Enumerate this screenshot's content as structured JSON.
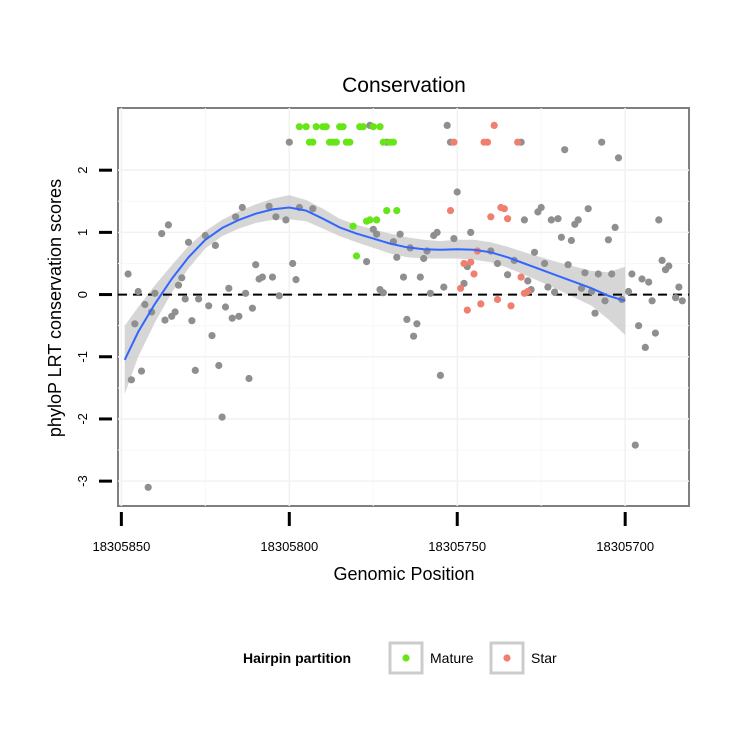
{
  "chart_data": {
    "type": "scatter",
    "title": "Conservation",
    "xlabel": "Genomic Position",
    "ylabel": "phyloP LRT conservation scores",
    "xlim": [
      18305851,
      18305681
    ],
    "ylim": [
      -3.4,
      3.0
    ],
    "x_reversed": true,
    "x_ticks": [
      18305850,
      18305800,
      18305750,
      18305700
    ],
    "x_tick_labels": [
      "18305850",
      "18305800",
      "18305750",
      "18305700"
    ],
    "y_ticks": [
      -3,
      -2,
      -1,
      0,
      1,
      2
    ],
    "y_tick_labels": [
      "-3",
      "-2",
      "-1",
      "0",
      "1",
      "2"
    ],
    "reference_line": {
      "y": 0,
      "style": "dashed"
    },
    "legend": {
      "title": "Hairpin partition",
      "position": "bottom",
      "entries": [
        {
          "name": "Mature",
          "color": "#66e616"
        },
        {
          "name": "Star",
          "color": "#f07f70"
        }
      ]
    },
    "colors": {
      "other": "#8f8f8f",
      "mature": "#66e616",
      "star": "#f07f70",
      "smooth_line": "#3366ff",
      "ribbon": "#c8c8c8"
    },
    "series": [
      {
        "name": "Other",
        "points": [
          [
            18305848,
            0.33
          ],
          [
            18305847,
            -1.37
          ],
          [
            18305846,
            -0.47
          ],
          [
            18305845,
            0.05
          ],
          [
            18305844,
            -1.23
          ],
          [
            18305843,
            -0.16
          ],
          [
            18305842,
            -3.1
          ],
          [
            18305841,
            -0.28
          ],
          [
            18305840,
            0.02
          ],
          [
            18305838,
            0.98
          ],
          [
            18305837,
            -0.41
          ],
          [
            18305836,
            1.12
          ],
          [
            18305835,
            -0.35
          ],
          [
            18305834,
            -0.28
          ],
          [
            18305833,
            0.15
          ],
          [
            18305832,
            0.27
          ],
          [
            18305831,
            -0.07
          ],
          [
            18305830,
            0.84
          ],
          [
            18305829,
            -0.42
          ],
          [
            18305828,
            -1.22
          ],
          [
            18305827,
            -0.07
          ],
          [
            18305825,
            0.95
          ],
          [
            18305824,
            -0.18
          ],
          [
            18305823,
            -0.66
          ],
          [
            18305822,
            0.79
          ],
          [
            18305821,
            -1.14
          ],
          [
            18305820,
            -1.97
          ],
          [
            18305819,
            -0.2
          ],
          [
            18305818,
            0.1
          ],
          [
            18305817,
            -0.38
          ],
          [
            18305816,
            1.25
          ],
          [
            18305815,
            -0.35
          ],
          [
            18305814,
            1.4
          ],
          [
            18305813,
            0.02
          ],
          [
            18305812,
            -1.35
          ],
          [
            18305811,
            -0.22
          ],
          [
            18305810,
            0.48
          ],
          [
            18305809,
            0.25
          ],
          [
            18305808,
            0.28
          ],
          [
            18305806,
            1.42
          ],
          [
            18305805,
            0.28
          ],
          [
            18305804,
            1.25
          ],
          [
            18305803,
            -0.02
          ],
          [
            18305801,
            1.2
          ],
          [
            18305800,
            2.45
          ],
          [
            18305799,
            0.5
          ],
          [
            18305798,
            0.24
          ],
          [
            18305797,
            1.4
          ],
          [
            18305793,
            1.38
          ],
          [
            18305777,
            0.53
          ],
          [
            18305776,
            2.72
          ],
          [
            18305775,
            1.05
          ],
          [
            18305774,
            0.97
          ],
          [
            18305773,
            0.08
          ],
          [
            18305772,
            0.03
          ],
          [
            18305771,
            2.45
          ],
          [
            18305769,
            0.85
          ],
          [
            18305768,
            0.6
          ],
          [
            18305767,
            0.97
          ],
          [
            18305766,
            0.28
          ],
          [
            18305765,
            -0.4
          ],
          [
            18305764,
            0.75
          ],
          [
            18305763,
            -0.67
          ],
          [
            18305762,
            -0.47
          ],
          [
            18305761,
            0.28
          ],
          [
            18305760,
            0.58
          ],
          [
            18305759,
            0.7
          ],
          [
            18305758,
            0.02
          ],
          [
            18305757,
            0.95
          ],
          [
            18305756,
            1.0
          ],
          [
            18305755,
            -1.3
          ],
          [
            18305754,
            0.12
          ],
          [
            18305753,
            2.72
          ],
          [
            18305752,
            2.45
          ],
          [
            18305751,
            0.9
          ],
          [
            18305750,
            1.65
          ],
          [
            18305748,
            0.18
          ],
          [
            18305747,
            0.45
          ],
          [
            18305746,
            1.0
          ],
          [
            18305740,
            0.7
          ],
          [
            18305738,
            0.5
          ],
          [
            18305735,
            0.32
          ],
          [
            18305733,
            0.55
          ],
          [
            18305731,
            2.45
          ],
          [
            18305730,
            1.2
          ],
          [
            18305729,
            0.22
          ],
          [
            18305728,
            0.08
          ],
          [
            18305727,
            0.68
          ],
          [
            18305726,
            1.33
          ],
          [
            18305725,
            1.4
          ],
          [
            18305724,
            0.5
          ],
          [
            18305723,
            0.12
          ],
          [
            18305722,
            1.2
          ],
          [
            18305721,
            0.04
          ],
          [
            18305720,
            1.22
          ],
          [
            18305719,
            0.92
          ],
          [
            18305718,
            2.33
          ],
          [
            18305717,
            0.48
          ],
          [
            18305716,
            0.87
          ],
          [
            18305715,
            1.13
          ],
          [
            18305714,
            1.2
          ],
          [
            18305713,
            0.1
          ],
          [
            18305712,
            0.35
          ],
          [
            18305711,
            1.38
          ],
          [
            18305710,
            0.05
          ],
          [
            18305709,
            -0.3
          ],
          [
            18305708,
            0.33
          ],
          [
            18305707,
            2.45
          ],
          [
            18305706,
            -0.1
          ],
          [
            18305705,
            0.88
          ],
          [
            18305704,
            0.33
          ],
          [
            18305703,
            1.08
          ],
          [
            18305702,
            2.2
          ],
          [
            18305701,
            -0.08
          ],
          [
            18305699,
            0.05
          ],
          [
            18305698,
            0.33
          ],
          [
            18305697,
            -2.42
          ],
          [
            18305696,
            -0.5
          ],
          [
            18305695,
            0.25
          ],
          [
            18305694,
            -0.85
          ],
          [
            18305693,
            0.2
          ],
          [
            18305692,
            -0.1
          ],
          [
            18305691,
            -0.62
          ],
          [
            18305690,
            1.2
          ],
          [
            18305689,
            0.55
          ],
          [
            18305688,
            0.4
          ],
          [
            18305687,
            0.46
          ],
          [
            18305685,
            -0.05
          ],
          [
            18305684,
            0.12
          ],
          [
            18305683,
            -0.1
          ]
        ]
      },
      {
        "name": "Mature",
        "points": [
          [
            18305797,
            2.7
          ],
          [
            18305795,
            2.7
          ],
          [
            18305794,
            2.45
          ],
          [
            18305793,
            2.45
          ],
          [
            18305792,
            2.7
          ],
          [
            18305790,
            2.7
          ],
          [
            18305789,
            2.7
          ],
          [
            18305788,
            2.45
          ],
          [
            18305787,
            2.45
          ],
          [
            18305786,
            2.45
          ],
          [
            18305785,
            2.7
          ],
          [
            18305784,
            2.7
          ],
          [
            18305783,
            2.45
          ],
          [
            18305782,
            2.45
          ],
          [
            18305781,
            1.1
          ],
          [
            18305780,
            0.62
          ],
          [
            18305779,
            2.7
          ],
          [
            18305778,
            2.7
          ],
          [
            18305777,
            1.18
          ],
          [
            18305776,
            1.2
          ],
          [
            18305775,
            2.7
          ],
          [
            18305774,
            1.2
          ],
          [
            18305773,
            2.7
          ],
          [
            18305772,
            2.45
          ],
          [
            18305771,
            1.35
          ],
          [
            18305770,
            2.45
          ],
          [
            18305769,
            2.45
          ],
          [
            18305768,
            1.35
          ]
        ]
      },
      {
        "name": "Star",
        "points": [
          [
            18305752,
            1.35
          ],
          [
            18305751,
            2.45
          ],
          [
            18305749,
            0.1
          ],
          [
            18305748,
            0.5
          ],
          [
            18305747,
            -0.25
          ],
          [
            18305746,
            0.52
          ],
          [
            18305745,
            0.33
          ],
          [
            18305744,
            0.7
          ],
          [
            18305743,
            -0.15
          ],
          [
            18305742,
            2.45
          ],
          [
            18305741,
            2.45
          ],
          [
            18305740,
            1.25
          ],
          [
            18305739,
            2.72
          ],
          [
            18305738,
            -0.08
          ],
          [
            18305737,
            1.4
          ],
          [
            18305736,
            1.38
          ],
          [
            18305735,
            1.22
          ],
          [
            18305734,
            -0.18
          ],
          [
            18305732,
            2.45
          ],
          [
            18305731,
            0.28
          ],
          [
            18305730,
            0.02
          ],
          [
            18305729,
            0.05
          ]
        ]
      }
    ],
    "smooth": {
      "line": [
        [
          18305849,
          -1.05
        ],
        [
          18305845,
          -0.6
        ],
        [
          18305840,
          -0.15
        ],
        [
          18305835,
          0.25
        ],
        [
          18305830,
          0.6
        ],
        [
          18305825,
          0.88
        ],
        [
          18305820,
          1.07
        ],
        [
          18305815,
          1.2
        ],
        [
          18305810,
          1.3
        ],
        [
          18305805,
          1.37
        ],
        [
          18305800,
          1.4
        ],
        [
          18305795,
          1.35
        ],
        [
          18305790,
          1.22
        ],
        [
          18305785,
          1.08
        ],
        [
          18305780,
          0.98
        ],
        [
          18305775,
          0.9
        ],
        [
          18305770,
          0.82
        ],
        [
          18305765,
          0.76
        ],
        [
          18305760,
          0.73
        ],
        [
          18305755,
          0.72
        ],
        [
          18305750,
          0.73
        ],
        [
          18305745,
          0.72
        ],
        [
          18305740,
          0.68
        ],
        [
          18305735,
          0.6
        ],
        [
          18305730,
          0.5
        ],
        [
          18305725,
          0.4
        ],
        [
          18305720,
          0.3
        ],
        [
          18305715,
          0.2
        ],
        [
          18305710,
          0.1
        ],
        [
          18305705,
          -0.02
        ],
        [
          18305700,
          -0.1
        ]
      ],
      "lower": [
        [
          18305849,
          -1.6
        ],
        [
          18305845,
          -1.0
        ],
        [
          18305840,
          -0.45
        ],
        [
          18305835,
          0.03
        ],
        [
          18305830,
          0.42
        ],
        [
          18305825,
          0.74
        ],
        [
          18305820,
          0.94
        ],
        [
          18305815,
          1.06
        ],
        [
          18305810,
          1.15
        ],
        [
          18305805,
          1.2
        ],
        [
          18305800,
          1.21
        ],
        [
          18305795,
          1.18
        ],
        [
          18305790,
          1.06
        ],
        [
          18305785,
          0.94
        ],
        [
          18305780,
          0.84
        ],
        [
          18305775,
          0.75
        ],
        [
          18305770,
          0.66
        ],
        [
          18305765,
          0.6
        ],
        [
          18305760,
          0.58
        ],
        [
          18305755,
          0.58
        ],
        [
          18305750,
          0.58
        ],
        [
          18305745,
          0.56
        ],
        [
          18305740,
          0.52
        ],
        [
          18305735,
          0.43
        ],
        [
          18305730,
          0.32
        ],
        [
          18305725,
          0.2
        ],
        [
          18305720,
          0.08
        ],
        [
          18305715,
          -0.05
        ],
        [
          18305710,
          -0.18
        ],
        [
          18305705,
          -0.4
        ],
        [
          18305700,
          -0.65
        ]
      ],
      "upper": [
        [
          18305849,
          -0.5
        ],
        [
          18305845,
          -0.2
        ],
        [
          18305840,
          0.15
        ],
        [
          18305835,
          0.47
        ],
        [
          18305830,
          0.78
        ],
        [
          18305825,
          1.02
        ],
        [
          18305820,
          1.2
        ],
        [
          18305815,
          1.34
        ],
        [
          18305810,
          1.45
        ],
        [
          18305805,
          1.54
        ],
        [
          18305800,
          1.6
        ],
        [
          18305795,
          1.52
        ],
        [
          18305790,
          1.38
        ],
        [
          18305785,
          1.22
        ],
        [
          18305780,
          1.12
        ],
        [
          18305775,
          1.05
        ],
        [
          18305770,
          0.98
        ],
        [
          18305765,
          0.92
        ],
        [
          18305760,
          0.88
        ],
        [
          18305755,
          0.86
        ],
        [
          18305750,
          0.88
        ],
        [
          18305745,
          0.88
        ],
        [
          18305740,
          0.84
        ],
        [
          18305735,
          0.77
        ],
        [
          18305730,
          0.68
        ],
        [
          18305725,
          0.6
        ],
        [
          18305720,
          0.52
        ],
        [
          18305715,
          0.45
        ],
        [
          18305710,
          0.38
        ],
        [
          18305705,
          0.36
        ],
        [
          18305700,
          0.45
        ]
      ]
    }
  }
}
